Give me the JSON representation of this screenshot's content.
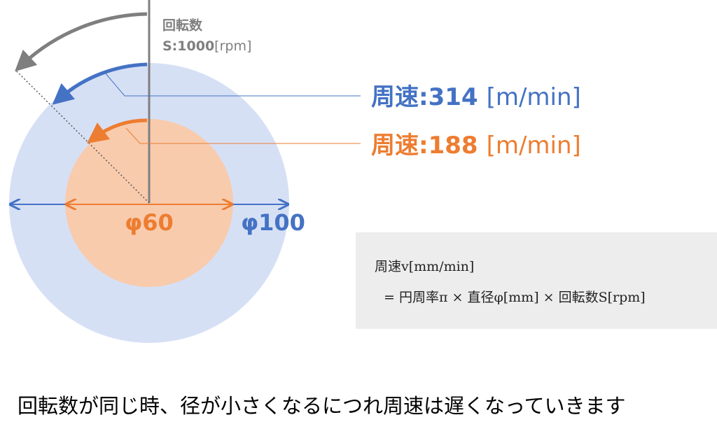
{
  "diagram": {
    "rotation_label": "回転数",
    "rotation_value": "S:1000",
    "rotation_unit": "[rpm]",
    "outer_speed": "周速:314",
    "outer_speed_unit": "[m/min]",
    "inner_speed": "周速:188",
    "inner_speed_unit": "[m/min]",
    "inner_diameter": "φ60",
    "outer_diameter": "φ100"
  },
  "formula": {
    "line1": "周速v[mm/min]",
    "line2": "= 円周率π × 直径φ[mm] × 回転数S[rpm]"
  },
  "caption": "回転数が同じ時、径が小さくなるにつれ周速は遅くなっていきます"
}
